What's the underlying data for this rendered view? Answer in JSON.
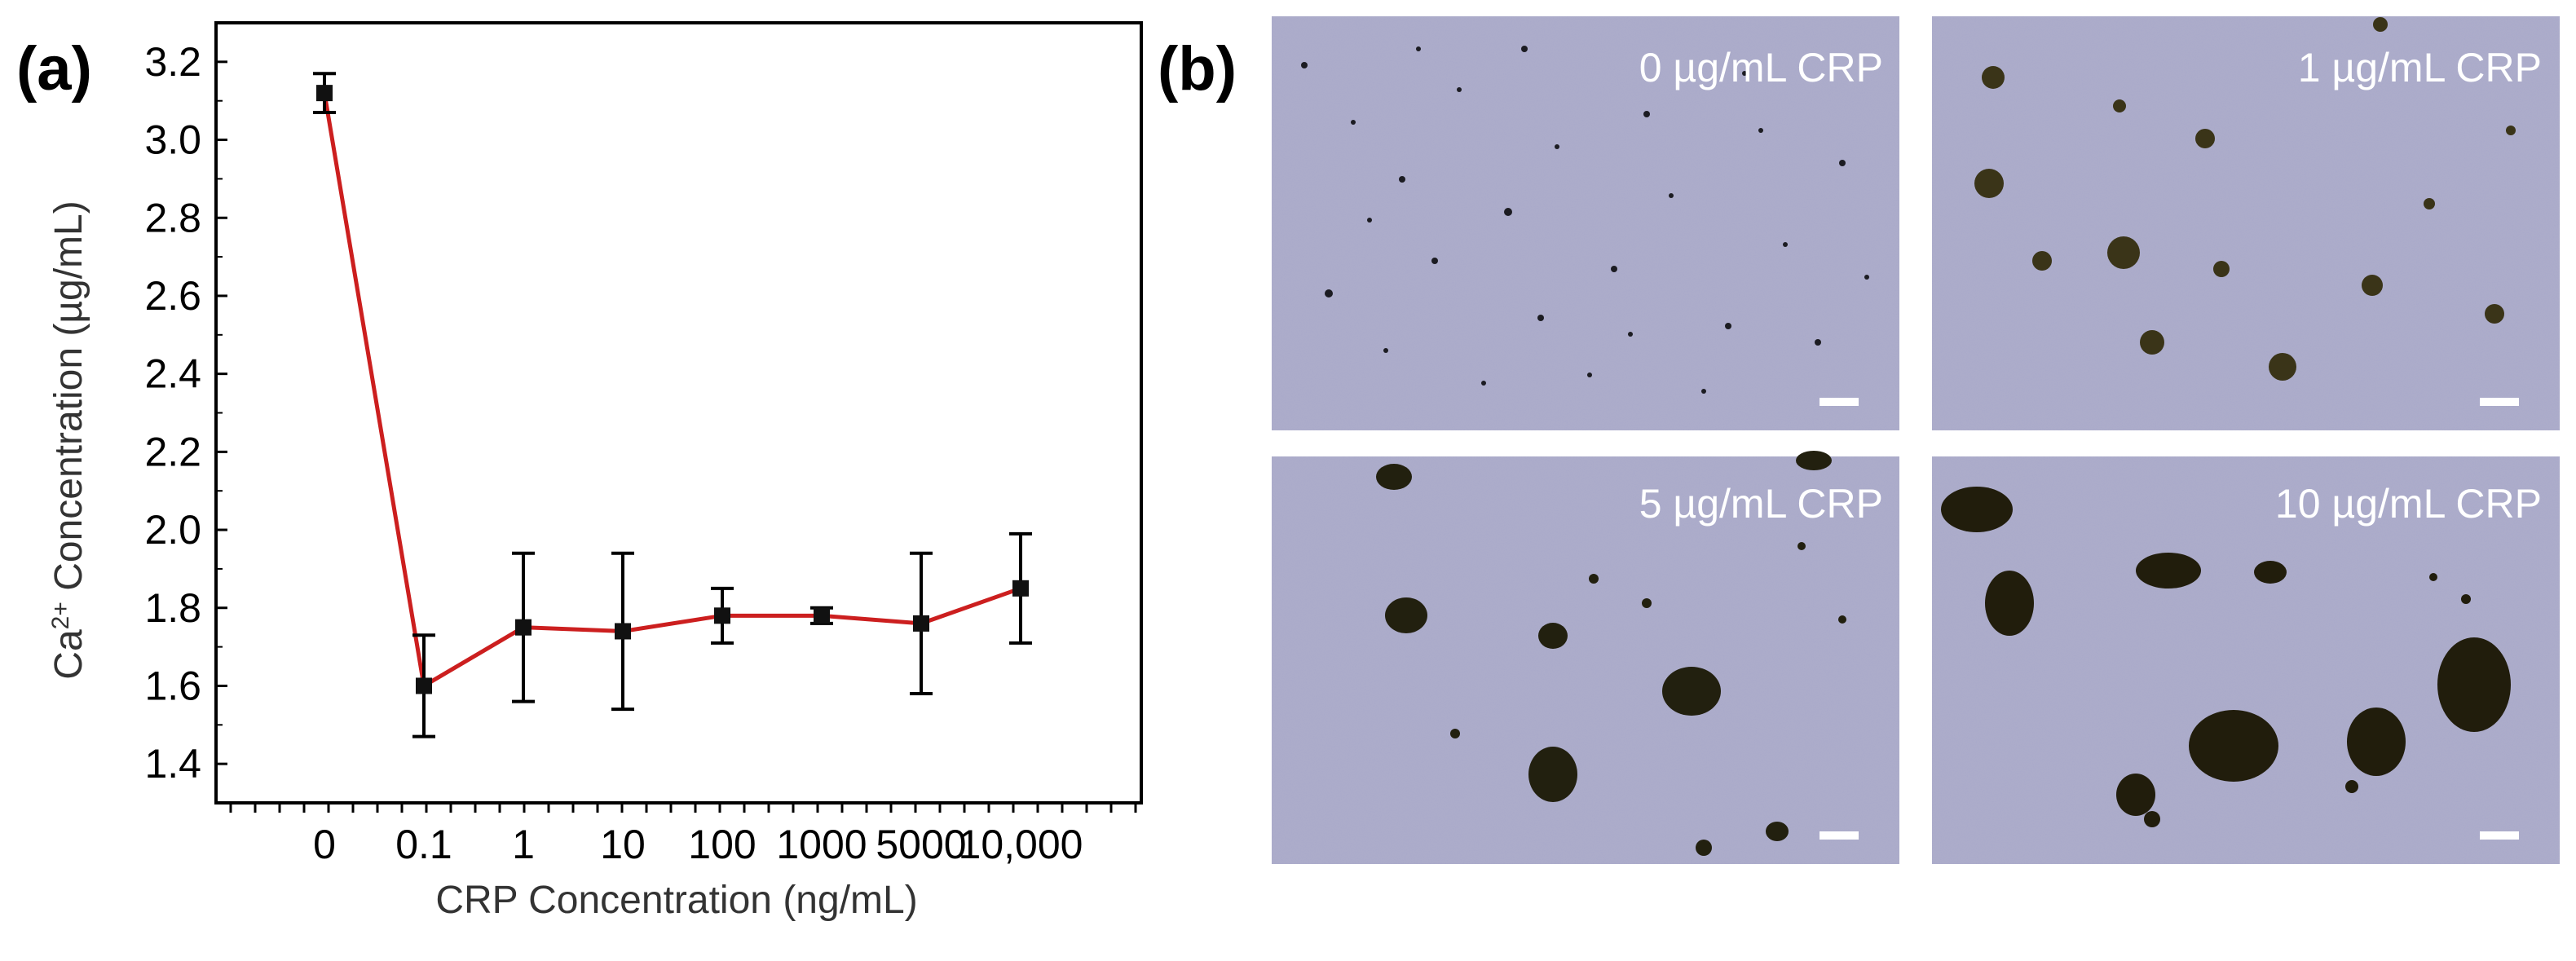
{
  "panels": {
    "a_label": "(a)",
    "b_label": "(b)"
  },
  "chart_data": {
    "type": "line",
    "title": "",
    "xlabel": "CRP Concentration (ng/mL)",
    "ylabel_prefix": "Ca",
    "ylabel_sup": "2+",
    "ylabel_suffix": " Concentration (µg/mL)",
    "categories": [
      "0",
      "0.1",
      "1",
      "10",
      "100",
      "1000",
      "5000",
      "10,000"
    ],
    "ylim": [
      1.3,
      3.3
    ],
    "yticks": [
      "1.4",
      "1.6",
      "1.8",
      "2.0",
      "2.2",
      "2.4",
      "2.6",
      "2.8",
      "3.0",
      "3.2"
    ],
    "grid": false,
    "series": [
      {
        "values": [
          3.12,
          1.6,
          1.75,
          1.74,
          1.78,
          1.78,
          1.76,
          1.85
        ],
        "errors": [
          0.05,
          0.13,
          0.19,
          0.2,
          0.07,
          0.02,
          0.18,
          0.14
        ],
        "line_color": "#cc1f1f",
        "marker_color": "#111111"
      }
    ]
  },
  "micrographs": [
    {
      "label": "0 µg/mL CRP"
    },
    {
      "label": "1 µg/mL CRP"
    },
    {
      "label": "5 µg/mL CRP"
    },
    {
      "label": "10 µg/mL CRP"
    }
  ]
}
